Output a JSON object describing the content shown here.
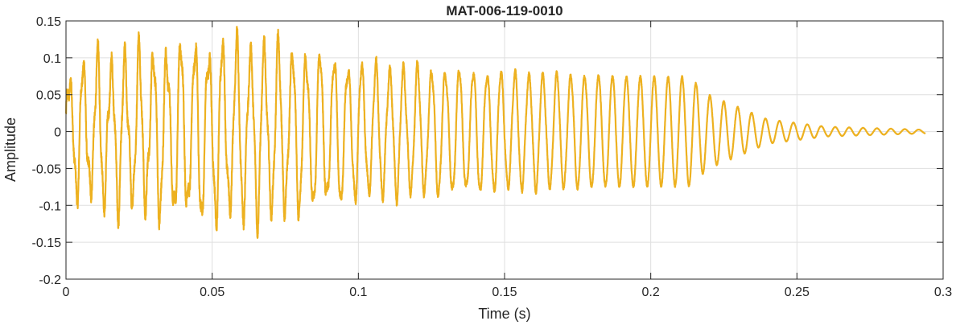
{
  "chart_data": {
    "type": "line",
    "title": "MAT-006-119-0010",
    "xlabel": "Time (s)",
    "ylabel": "Amplitude",
    "xlim": [
      0,
      0.3
    ],
    "ylim": [
      -0.2,
      0.15
    ],
    "xticks": [
      0,
      0.05,
      0.1,
      0.15,
      0.2,
      0.25,
      0.3
    ],
    "xtick_labels": [
      "0",
      "0.05",
      "0.1",
      "0.15",
      "0.2",
      "0.25",
      "0.3"
    ],
    "yticks": [
      -0.2,
      -0.15,
      -0.1,
      -0.05,
      0,
      0.05,
      0.1,
      0.15
    ],
    "ytick_labels": [
      "-0.2",
      "-0.15",
      "-0.1",
      "-0.05",
      "0",
      "0.05",
      "0.1",
      "0.15"
    ],
    "grid": true,
    "line_color": "#EDB120",
    "series": [
      {
        "name": "",
        "signal": {
          "duration": 0.294,
          "carrier_frequency_hz": 210,
          "envelope": {
            "t": [
              0,
              0.01,
              0.03,
              0.05,
              0.07,
              0.1,
              0.15,
              0.2,
              0.213,
              0.22,
              0.24,
              0.26,
              0.294
            ],
            "amplitude": [
              0.09,
              0.11,
              0.125,
              0.135,
              0.135,
              0.105,
              0.095,
              0.09,
              0.09,
              0.06,
              0.02,
              0.008,
              0.003
            ]
          }
        }
      }
    ]
  }
}
